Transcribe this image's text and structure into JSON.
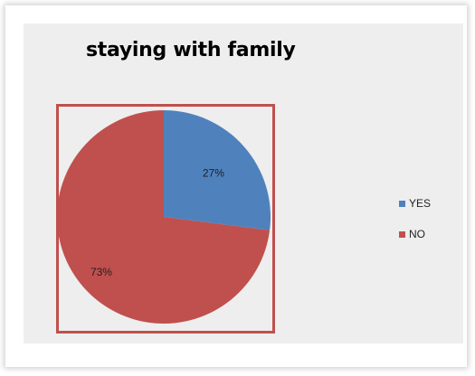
{
  "chart_data": {
    "type": "pie",
    "title": "staying with family",
    "series": [
      {
        "name": "YES",
        "value": 27,
        "label": "27%",
        "color": "#4f81bd"
      },
      {
        "name": "NO",
        "value": 73,
        "label": "73%",
        "color": "#c0504d"
      }
    ],
    "legend": "right",
    "start_angle": "12 o'clock",
    "direction": "clockwise"
  }
}
